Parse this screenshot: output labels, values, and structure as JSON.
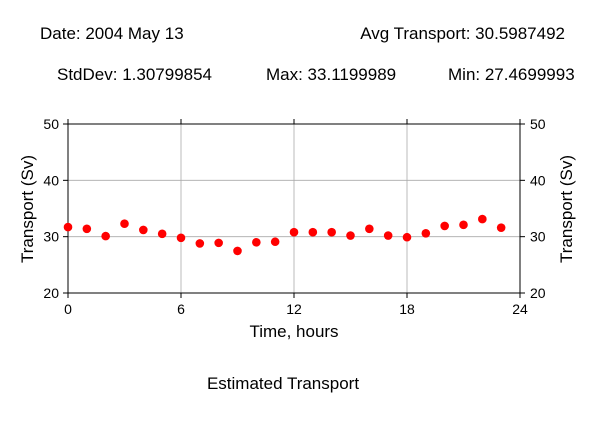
{
  "header": {
    "date": "Date: 2004 May 13",
    "avg": "Avg Transport: 30.5987492",
    "stddev": "StdDev: 1.30799854",
    "max": "Max: 33.1199989",
    "min": "Min: 27.4699993"
  },
  "caption": "Estimated Transport",
  "chart_data": {
    "type": "scatter",
    "xlabel": "Time, hours",
    "ylabel": "Transport (Sv)",
    "ylabel_right": "Transport (Sv)",
    "xlim": [
      0,
      24
    ],
    "ylim": [
      20,
      50
    ],
    "xticks": [
      0,
      6,
      12,
      18,
      24
    ],
    "yticks": [
      20,
      30,
      40,
      50
    ],
    "grid": true,
    "marker_color": "#ff0000",
    "x": [
      0,
      1,
      2,
      3,
      4,
      5,
      6,
      7,
      8,
      9,
      10,
      11,
      12,
      13,
      14,
      15,
      16,
      17,
      18,
      19,
      20,
      21,
      22,
      23
    ],
    "y": [
      31.7,
      31.4,
      30.1,
      32.3,
      31.2,
      30.5,
      29.8,
      28.8,
      28.9,
      27.47,
      29.0,
      29.1,
      30.8,
      30.8,
      30.8,
      30.2,
      31.4,
      30.2,
      29.9,
      30.6,
      31.9,
      32.1,
      33.12,
      31.6
    ]
  }
}
